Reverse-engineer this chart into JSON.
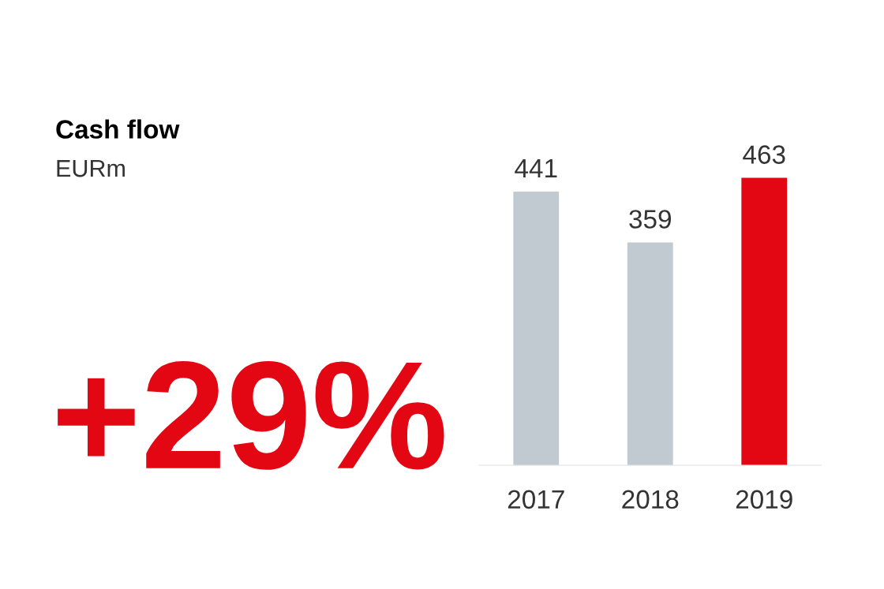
{
  "chart_data": {
    "type": "bar",
    "title": "Cash flow",
    "subtitle": "EURm",
    "annotations": [
      "+29%"
    ],
    "categories": [
      "2017",
      "2018",
      "2019"
    ],
    "values": [
      441,
      359,
      463
    ],
    "colors": [
      "#c1cad1",
      "#c1cad1",
      "#e30613"
    ],
    "data_labels": true,
    "grid": false,
    "legend": false
  }
}
